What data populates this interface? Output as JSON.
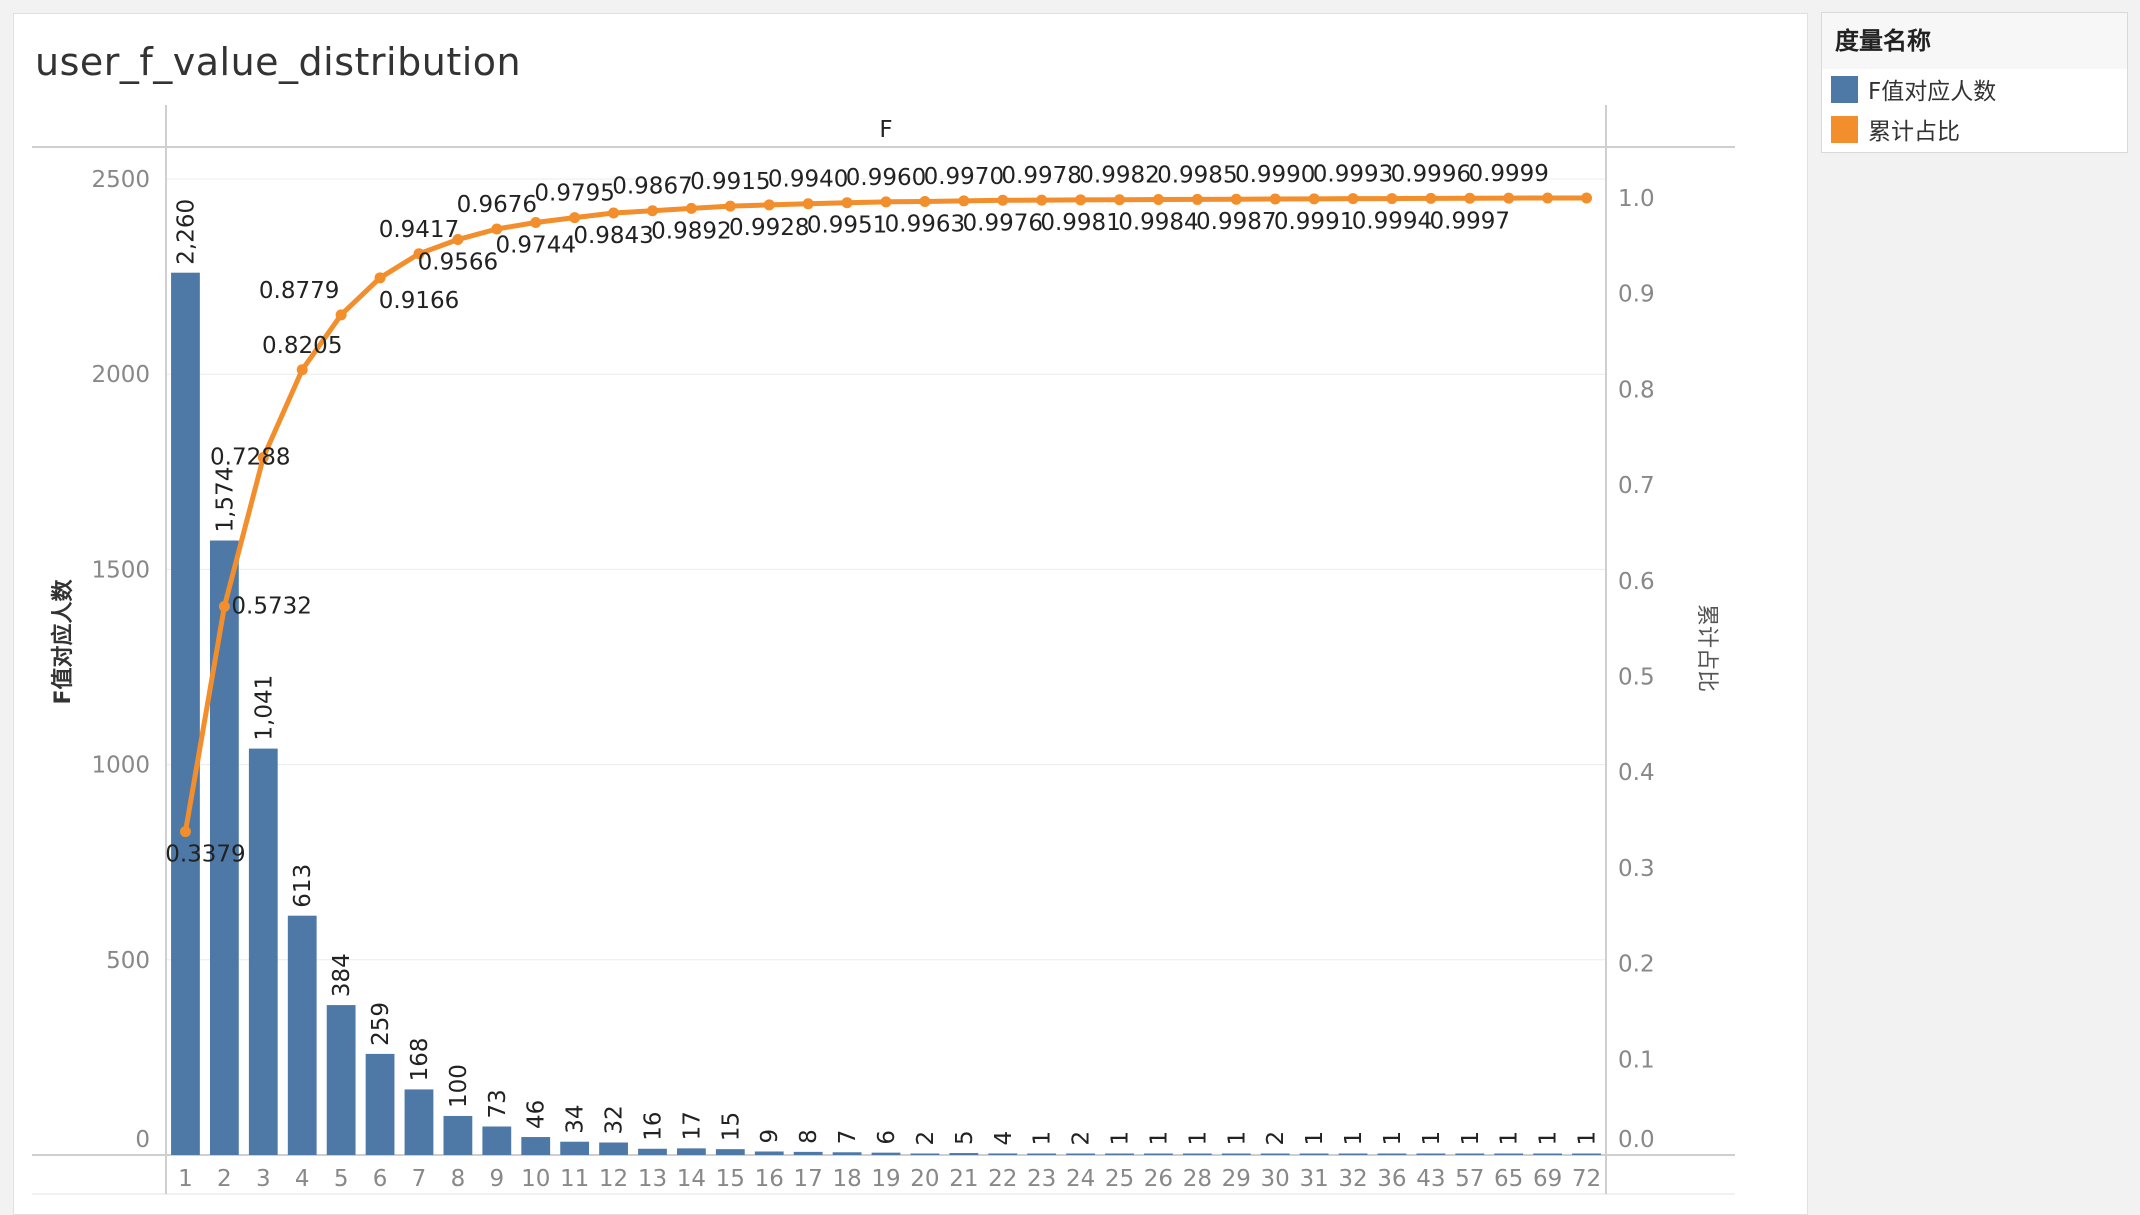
{
  "title": "user_f_value_distribution",
  "legend": {
    "title": "度量名称",
    "items": [
      {
        "label": "F值对应人数",
        "color": "#4e79a7"
      },
      {
        "label": "累计占比",
        "color": "#f28e2b"
      }
    ]
  },
  "chart_data": {
    "type": "bar",
    "title": "user_f_value_distribution",
    "xlabel": "F",
    "categories": [
      "1",
      "2",
      "3",
      "4",
      "5",
      "6",
      "7",
      "8",
      "9",
      "10",
      "11",
      "12",
      "13",
      "14",
      "15",
      "16",
      "17",
      "18",
      "19",
      "20",
      "21",
      "22",
      "23",
      "24",
      "25",
      "26",
      "28",
      "29",
      "30",
      "31",
      "32",
      "36",
      "43",
      "57",
      "65",
      "69",
      "72"
    ],
    "series": [
      {
        "name": "F值对应人数",
        "type": "bar",
        "axis": "left",
        "color": "#4e79a7",
        "values": [
          2260,
          1574,
          1041,
          613,
          384,
          259,
          168,
          100,
          73,
          46,
          34,
          32,
          16,
          17,
          15,
          9,
          8,
          7,
          6,
          2,
          5,
          4,
          1,
          2,
          1,
          1,
          1,
          1,
          2,
          1,
          1,
          1,
          1,
          1,
          1,
          1,
          1
        ],
        "labels": [
          "2,260",
          "1,574",
          "1,041",
          "613",
          "384",
          "259",
          "168",
          "100",
          "73",
          "46",
          "34",
          "32",
          "16",
          "17",
          "15",
          "9",
          "8",
          "7",
          "6",
          "2",
          "5",
          "4",
          "1",
          "2",
          "1",
          "1",
          "1",
          "1",
          "2",
          "1",
          "1",
          "1",
          "1",
          "1",
          "1",
          "1",
          "1"
        ]
      },
      {
        "name": "累计占比",
        "type": "line",
        "axis": "right",
        "color": "#f28e2b",
        "values": [
          0.3379,
          0.5732,
          0.7288,
          0.8205,
          0.8779,
          0.9166,
          0.9417,
          0.9566,
          0.9676,
          0.9744,
          0.9795,
          0.9843,
          0.9867,
          0.9892,
          0.9915,
          0.9928,
          0.994,
          0.9951,
          0.996,
          0.9963,
          0.997,
          0.9976,
          0.9978,
          0.9981,
          0.9982,
          0.9984,
          0.9985,
          0.9987,
          0.999,
          0.9991,
          0.9993,
          0.9994,
          0.9996,
          0.9997,
          0.9999,
          1.0,
          1.0
        ],
        "labels": [
          "0.3379",
          "0.5732",
          "0.7288",
          "0.8205",
          "0.8779",
          "0.9166",
          "0.9417",
          "0.9566",
          "0.9676",
          "0.9744",
          "0.9795",
          "0.9843",
          "0.9867",
          "0.9892",
          "0.9915",
          "0.9928",
          "0.9940",
          "0.9951",
          "0.9960",
          "0.9963",
          "0.9970",
          "0.9976",
          "0.9978",
          "0.9981",
          "0.9982",
          "0.9984",
          "0.9985",
          "0.9987",
          "0.9990",
          "0.9991",
          "0.9993",
          "0.9994",
          "0.9996",
          "0.9997",
          "0.9999",
          "",
          ""
        ]
      }
    ],
    "y_left": {
      "label": "F值对应人数",
      "range": [
        0,
        2500
      ],
      "ticks": [
        0,
        500,
        1000,
        1500,
        2000,
        2500
      ]
    },
    "y_right": {
      "label": "累计占比",
      "range": [
        0,
        1.0
      ],
      "ticks": [
        "0.0",
        "0.1",
        "0.2",
        "0.3",
        "0.4",
        "0.5",
        "0.6",
        "0.7",
        "0.8",
        "0.9",
        "1.0"
      ]
    },
    "grid": true,
    "legend_position": "right"
  }
}
